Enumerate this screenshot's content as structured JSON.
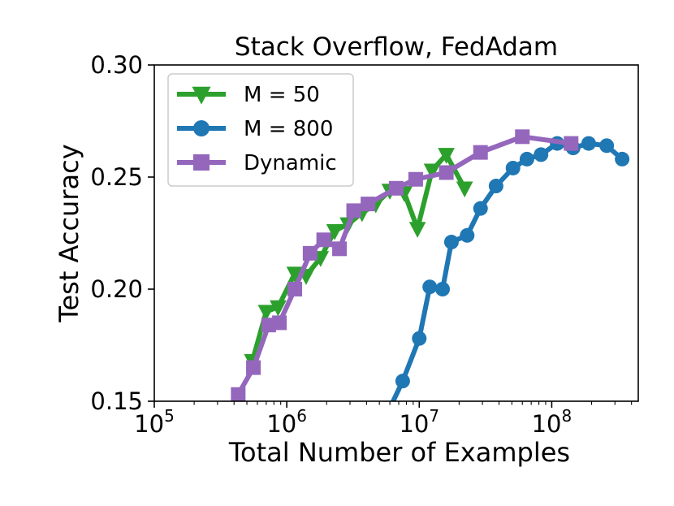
{
  "chart_data": {
    "type": "line",
    "title": "Stack Overflow, FedAdam",
    "xlabel": "Total Number of Examples",
    "ylabel": "Test Accuracy",
    "xscale": "log",
    "xlim": [
      100000,
      450000000
    ],
    "ylim": [
      0.15,
      0.3
    ],
    "xticks": [
      {
        "value": 100000,
        "base": "10",
        "exp": "5"
      },
      {
        "value": 1000000,
        "base": "10",
        "exp": "6"
      },
      {
        "value": 10000000,
        "base": "10",
        "exp": "7"
      },
      {
        "value": 100000000,
        "base": "10",
        "exp": "8"
      }
    ],
    "yticks": [
      {
        "value": 0.15,
        "label": "0.15"
      },
      {
        "value": 0.2,
        "label": "0.20"
      },
      {
        "value": 0.25,
        "label": "0.25"
      },
      {
        "value": 0.3,
        "label": "0.30"
      }
    ],
    "grid": false,
    "legend_position": "top-left",
    "series": [
      {
        "name": "M = 50",
        "color": "#2ca02c",
        "marker": "triangle-down",
        "x": [
          550000,
          700000,
          860000,
          1150000,
          1400000,
          1800000,
          2300000,
          2900000,
          3700000,
          4700000,
          6000000,
          7700000,
          9700000,
          12500000,
          16000000,
          22000000
        ],
        "y": [
          0.168,
          0.19,
          0.192,
          0.207,
          0.206,
          0.214,
          0.226,
          0.229,
          0.234,
          0.238,
          0.244,
          0.243,
          0.227,
          0.253,
          0.26,
          0.245
        ]
      },
      {
        "name": "M = 800",
        "color": "#1f77b4",
        "marker": "circle",
        "x": [
          4000000,
          7500000,
          10000000,
          12000000,
          15000000,
          17500000,
          23000000,
          29000000,
          38000000,
          51000000,
          65000000,
          83000000,
          110000000,
          145000000,
          190000000,
          260000000,
          340000000
        ],
        "y": [
          0.125,
          0.159,
          0.178,
          0.201,
          0.2,
          0.221,
          0.224,
          0.236,
          0.246,
          0.254,
          0.258,
          0.26,
          0.265,
          0.263,
          0.265,
          0.264,
          0.258
        ]
      },
      {
        "name": "Dynamic",
        "color": "#9467bd",
        "marker": "square",
        "x": [
          430000,
          560000,
          730000,
          880000,
          1150000,
          1500000,
          1900000,
          2500000,
          3200000,
          4100000,
          6700000,
          9400000,
          16000000,
          29000000,
          60000000,
          140000000
        ],
        "y": [
          0.153,
          0.165,
          0.184,
          0.185,
          0.2,
          0.216,
          0.222,
          0.218,
          0.235,
          0.238,
          0.245,
          0.249,
          0.252,
          0.261,
          0.268,
          0.265
        ]
      }
    ]
  }
}
